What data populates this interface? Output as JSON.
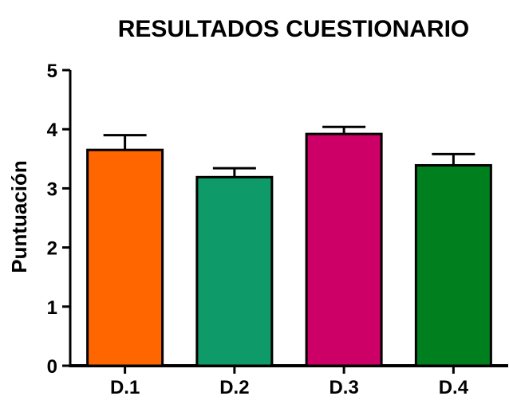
{
  "chart_data": {
    "type": "bar",
    "title": "RESULTADOS CUESTIONARIO",
    "xlabel": "",
    "ylabel": "Puntuación",
    "categories": [
      "D.1",
      "D.2",
      "D.3",
      "D.4"
    ],
    "values": [
      3.65,
      3.19,
      3.92,
      3.39
    ],
    "error_upper": [
      0.25,
      0.15,
      0.12,
      0.19
    ],
    "colors": [
      "#ff6600",
      "#0f9a6a",
      "#cc0066",
      "#007f1f"
    ],
    "ylim": [
      0,
      5
    ],
    "yticks": [
      "0",
      "1",
      "2",
      "3",
      "4",
      "5"
    ],
    "grid": false,
    "legend": "none"
  }
}
